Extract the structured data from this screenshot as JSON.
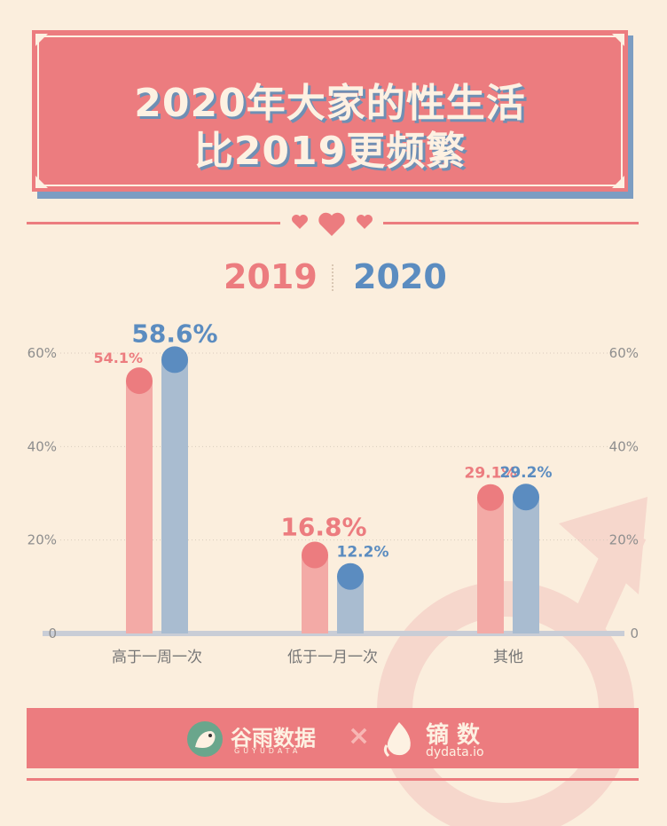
{
  "title": {
    "line1": "2020年大家的性生活",
    "line2": "比2019更频繁"
  },
  "legend": {
    "series_a": "2019",
    "series_b": "2020"
  },
  "colors": {
    "series_2019": "#ec7c7f",
    "series_2020": "#5b8cc0",
    "background": "#fbeedd",
    "banner": "#ec7c7f"
  },
  "chart_data": {
    "type": "bar",
    "categories": [
      "高于一周一次",
      "低于一月一次",
      "其他"
    ],
    "series": [
      {
        "name": "2019",
        "values": [
          54.1,
          16.8,
          29.1
        ],
        "labels": [
          "54.1%",
          "16.8%",
          "29.1%"
        ]
      },
      {
        "name": "2020",
        "values": [
          58.6,
          12.2,
          29.2
        ],
        "labels": [
          "58.6%",
          "12.2%",
          "29.2%"
        ]
      }
    ],
    "y_ticks": [
      "0",
      "20%",
      "40%",
      "60%"
    ],
    "ylim": [
      0,
      60
    ],
    "grid": true,
    "dual_axis_labels": true
  },
  "footer": {
    "brand1_name": "谷雨数据",
    "brand1_sub": "GUYUDATA",
    "separator": "×",
    "brand2_name": "镝 数",
    "brand2_sub": "dydata.io"
  }
}
